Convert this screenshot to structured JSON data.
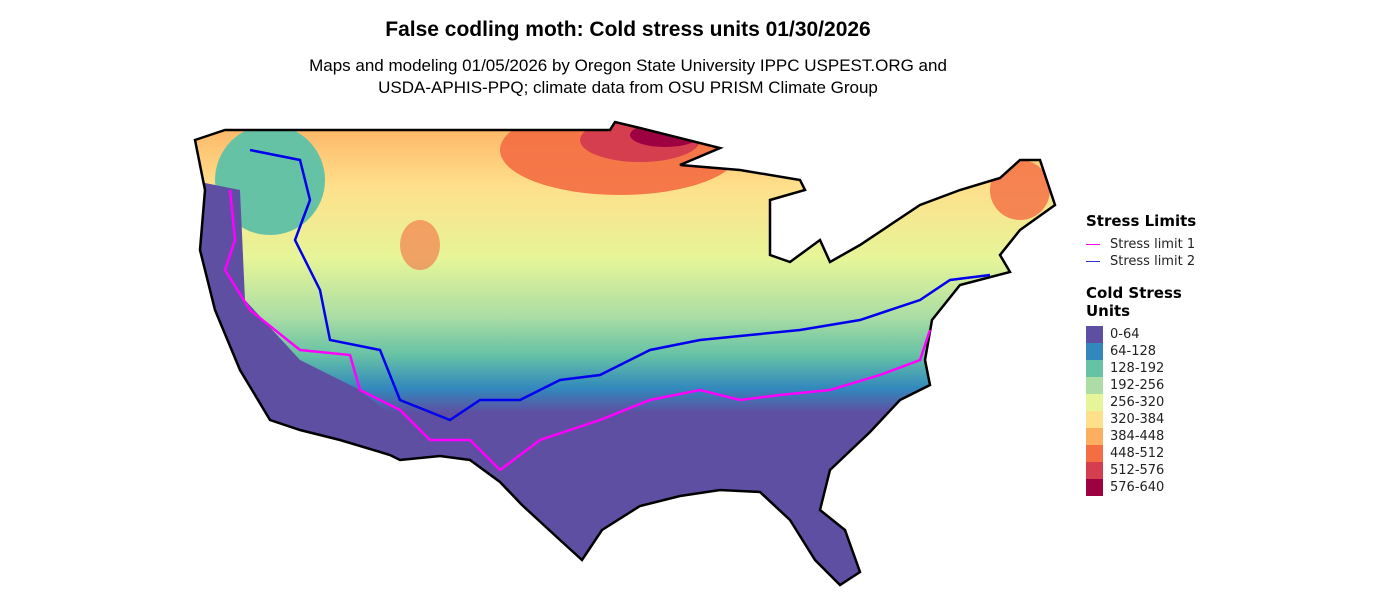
{
  "title": "False codling moth: Cold stress units 01/30/2026",
  "subtitle_line1": "Maps and modeling 01/05/2026 by Oregon State University IPPC USPEST.ORG and",
  "subtitle_line2": "USDA-APHIS-PPQ; climate data from OSU PRISM Climate Group",
  "legend": {
    "stress_title": "Stress Limits",
    "stress_lines": [
      {
        "label": "Stress limit 1",
        "color": "#FF00FF"
      },
      {
        "label": "Stress limit 2",
        "color": "#0000EE"
      }
    ],
    "units_title": "Cold Stress Units",
    "classes": [
      {
        "label": "0-64",
        "color": "#5E4FA2"
      },
      {
        "label": "64-128",
        "color": "#3288BD"
      },
      {
        "label": "128-192",
        "color": "#66C2A5"
      },
      {
        "label": "192-256",
        "color": "#ABDDA4"
      },
      {
        "label": "256-320",
        "color": "#E6F598"
      },
      {
        "label": "320-384",
        "color": "#FEE08B"
      },
      {
        "label": "384-448",
        "color": "#FDAE61"
      },
      {
        "label": "448-512",
        "color": "#F46D43"
      },
      {
        "label": "512-576",
        "color": "#D53E4F"
      },
      {
        "label": "576-640",
        "color": "#9E0142"
      }
    ]
  }
}
